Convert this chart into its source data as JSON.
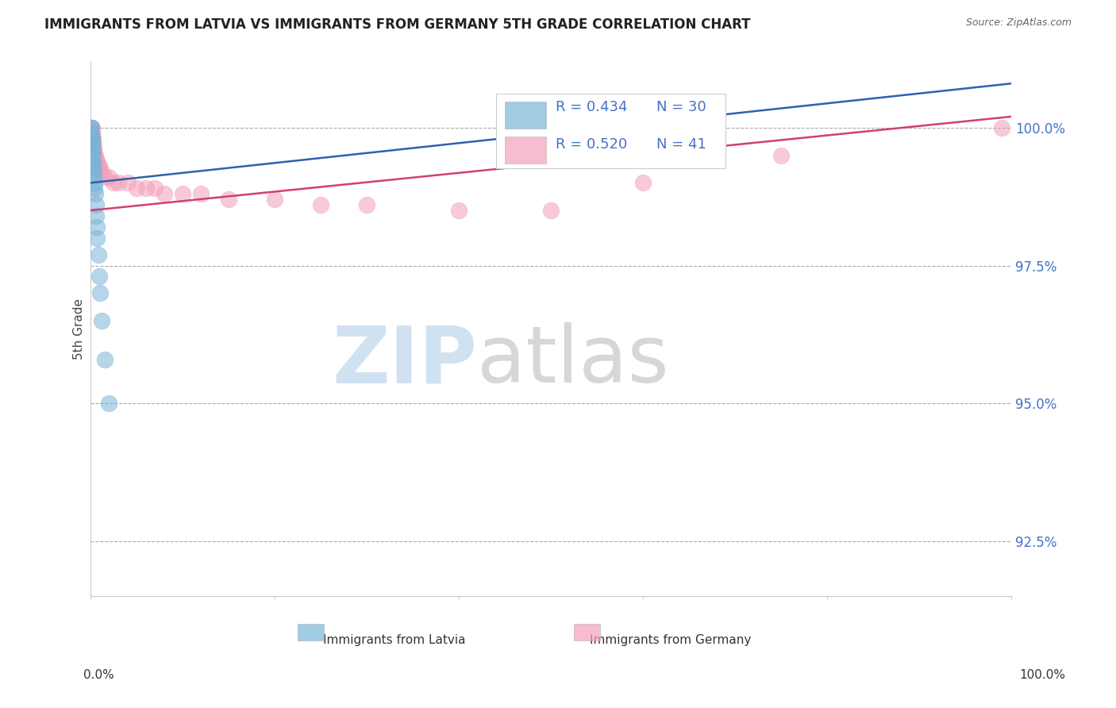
{
  "title": "IMMIGRANTS FROM LATVIA VS IMMIGRANTS FROM GERMANY 5TH GRADE CORRELATION CHART",
  "source": "Source: ZipAtlas.com",
  "ylabel": "5th Grade",
  "ylim": [
    91.5,
    101.2
  ],
  "xlim": [
    0,
    100
  ],
  "yticks": [
    92.5,
    95.0,
    97.5,
    100.0
  ],
  "ytick_labels": [
    "92.5%",
    "95.0%",
    "97.5%",
    "100.0%"
  ],
  "legend_r1": "R = 0.434",
  "legend_n1": "N = 30",
  "legend_r2": "R = 0.520",
  "legend_n2": "N = 41",
  "blue_color": "#7ab4d8",
  "pink_color": "#f4a0b8",
  "blue_line_color": "#3060b0",
  "pink_line_color": "#d04070",
  "text_color": "#4472c4",
  "latvia_x": [
    0.05,
    0.08,
    0.1,
    0.12,
    0.15,
    0.18,
    0.2,
    0.22,
    0.25,
    0.28,
    0.3,
    0.35,
    0.4,
    0.45,
    0.5,
    0.55,
    0.6,
    0.65,
    0.7,
    0.8,
    0.9,
    1.0,
    1.2,
    1.5,
    2.0,
    0.05,
    0.07,
    0.1,
    0.15,
    0.08
  ],
  "latvia_y": [
    100.0,
    100.0,
    99.9,
    99.8,
    99.8,
    99.7,
    99.6,
    99.5,
    99.4,
    99.3,
    99.2,
    99.1,
    99.0,
    98.9,
    98.8,
    98.6,
    98.4,
    98.2,
    98.0,
    97.7,
    97.3,
    97.0,
    96.5,
    95.8,
    95.0,
    99.7,
    99.6,
    99.5,
    99.3,
    99.8
  ],
  "germany_x": [
    0.1,
    0.12,
    0.15,
    0.18,
    0.2,
    0.22,
    0.25,
    0.28,
    0.3,
    0.35,
    0.4,
    0.45,
    0.5,
    0.55,
    0.6,
    0.65,
    0.7,
    0.8,
    0.9,
    1.0,
    1.2,
    1.5,
    2.0,
    2.5,
    3.0,
    4.0,
    5.0,
    6.0,
    7.0,
    8.0,
    10.0,
    12.0,
    15.0,
    20.0,
    25.0,
    30.0,
    40.0,
    50.0,
    60.0,
    75.0,
    99.0
  ],
  "germany_y": [
    100.0,
    100.0,
    99.9,
    99.9,
    99.8,
    99.8,
    99.7,
    99.7,
    99.6,
    99.6,
    99.5,
    99.5,
    99.5,
    99.4,
    99.4,
    99.4,
    99.3,
    99.3,
    99.3,
    99.2,
    99.2,
    99.1,
    99.1,
    99.0,
    99.0,
    99.0,
    98.9,
    98.9,
    98.9,
    98.8,
    98.8,
    98.8,
    98.7,
    98.7,
    98.6,
    98.6,
    98.5,
    98.5,
    99.0,
    99.5,
    100.0
  ],
  "blue_trend_x": [
    0,
    100
  ],
  "blue_trend_y": [
    99.0,
    100.8
  ],
  "pink_trend_x": [
    0,
    100
  ],
  "pink_trend_y": [
    98.5,
    100.2
  ]
}
